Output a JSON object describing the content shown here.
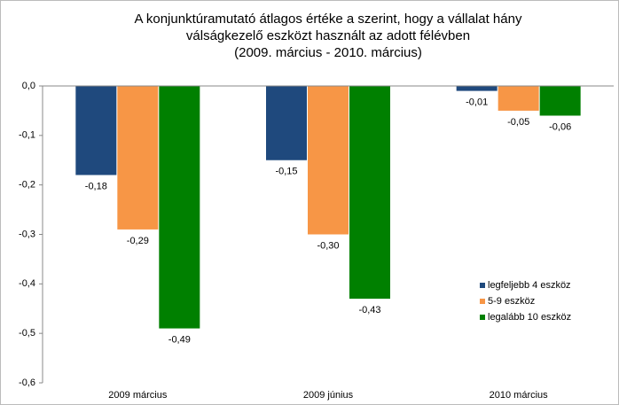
{
  "chart_data": {
    "type": "bar",
    "title": [
      "A konjunktúramutató átlagos értéke a szerint, hogy a vállalat hány",
      "válságkezelő eszközt használt az adott félévben",
      "(2009. március - 2010. március)"
    ],
    "categories": [
      "2009 március",
      "2009 június",
      "2010 március"
    ],
    "series": [
      {
        "name": "legfeljebb 4 eszköz",
        "color": "#1f497d",
        "values": [
          -0.18,
          -0.15,
          -0.01
        ],
        "value_labels": [
          "-0,18",
          "-0,15",
          "-0,01"
        ]
      },
      {
        "name": "5-9 eszköz",
        "color": "#f79646",
        "values": [
          -0.29,
          -0.3,
          -0.05
        ],
        "value_labels": [
          "-0,29",
          "-0,30",
          "-0,05"
        ]
      },
      {
        "name": "legalább 10 eszköz",
        "color": "#008000",
        "values": [
          -0.49,
          -0.43,
          -0.06
        ],
        "value_labels": [
          "-0,49",
          "-0,43",
          "-0,06"
        ]
      }
    ],
    "ylim": [
      -0.6,
      0
    ],
    "yticks": [
      {
        "value": 0,
        "label": "0,0"
      },
      {
        "value": -0.1,
        "label": "-0,1"
      },
      {
        "value": -0.2,
        "label": "-0,2"
      },
      {
        "value": -0.3,
        "label": "-0,3"
      },
      {
        "value": -0.4,
        "label": "-0,4"
      },
      {
        "value": -0.5,
        "label": "-0,5"
      },
      {
        "value": -0.6,
        "label": "-0,6"
      }
    ],
    "legend": "right"
  }
}
